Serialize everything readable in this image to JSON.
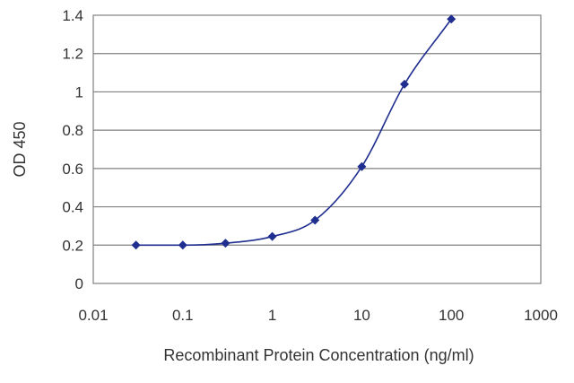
{
  "chart_data": {
    "type": "line",
    "title": "",
    "xlabel": "Recombinant Protein Concentration (ng/ml)",
    "ylabel": "OD 450",
    "x_scale": "log",
    "xlim": [
      0.01,
      1000
    ],
    "ylim": [
      0,
      1.4
    ],
    "x_ticks": [
      "0.01",
      "0.1",
      "1",
      "10",
      "100",
      "1000"
    ],
    "y_ticks": [
      "0",
      "0.2",
      "0.4",
      "0.6",
      "0.8",
      "1",
      "1.2",
      "1.4"
    ],
    "grid": "horizontal",
    "legend": "none",
    "series": [
      {
        "color": "#1f2e8f",
        "marker": "diamond",
        "x": [
          0.03,
          0.1,
          0.3,
          1,
          3,
          10,
          30,
          100
        ],
        "y": [
          0.2,
          0.2,
          0.21,
          0.245,
          0.33,
          0.61,
          1.04,
          1.38
        ]
      }
    ]
  }
}
